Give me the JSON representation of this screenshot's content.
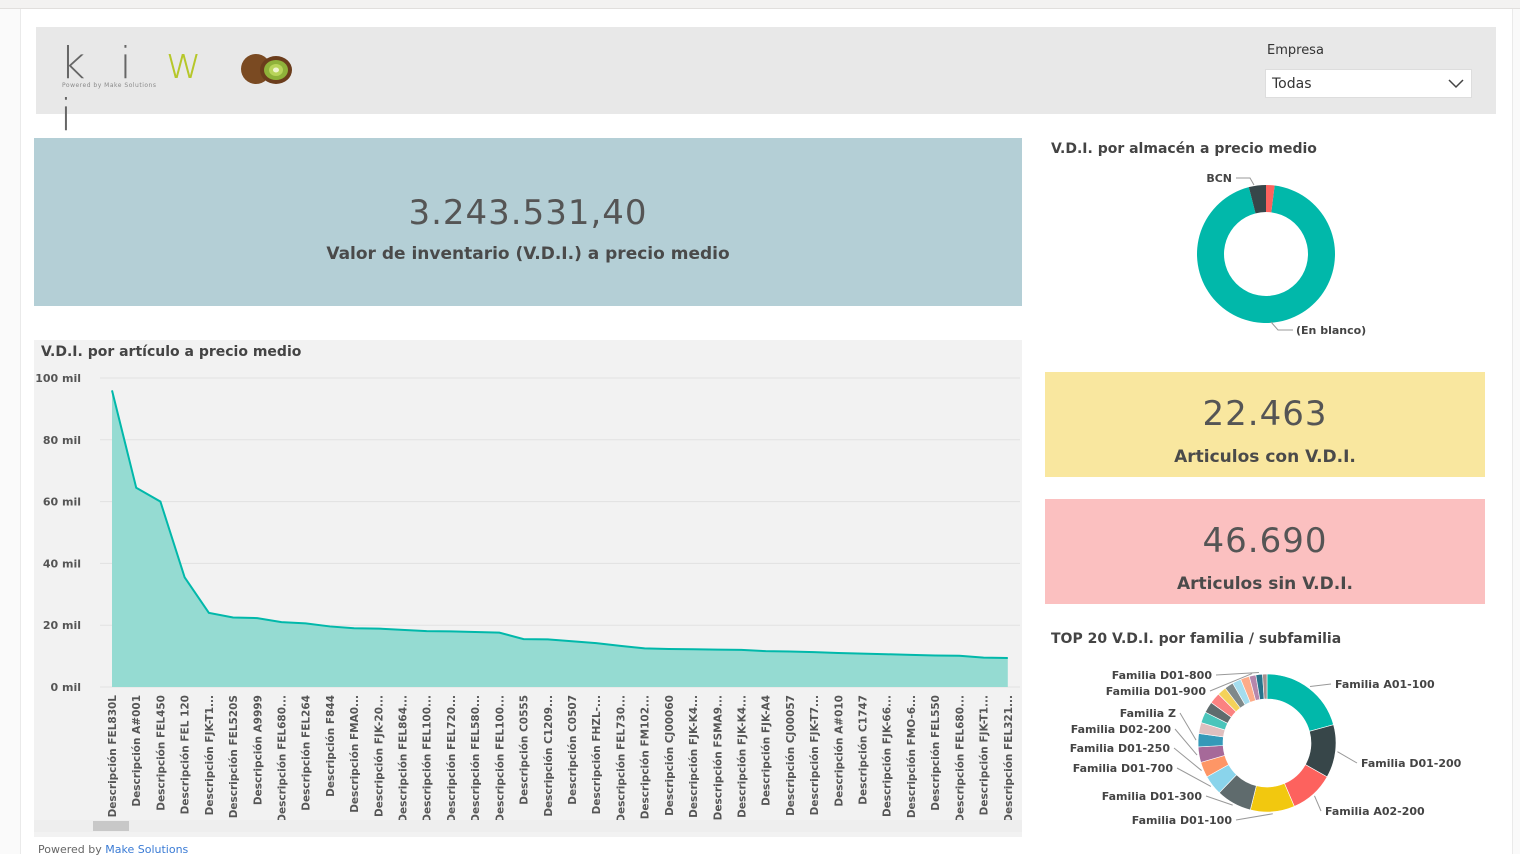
{
  "header": {
    "logo_text": "kiwi",
    "logo_tagline": "Powered by Make Solutions",
    "empresa_label": "Empresa",
    "empresa_value": "Todas"
  },
  "kpis": {
    "main_value": "3.243.531,40",
    "main_label": "Valor de inventario (V.D.I.) a precio medio",
    "with_value": "22.463",
    "with_label": "Articulos con V.D.I.",
    "without_value": "46.690",
    "without_label": "Articulos sin V.D.I."
  },
  "footer": {
    "prefix": "Powered by ",
    "link": "Make Solutions"
  },
  "colors": {
    "teal": "#01b8aa",
    "area_fill": "#95dbd2",
    "dark": "#374649",
    "red": "#fd625e",
    "yellow": "#f2c80f",
    "gray": "#5f6b6d",
    "lightblue": "#8ad4eb",
    "orange": "#fe9666",
    "purple": "#a66999"
  },
  "chart_data": [
    {
      "type": "area",
      "title": "V.D.I. por artículo a precio medio",
      "xlabel": "",
      "ylabel": "",
      "ylim": [
        0,
        100000
      ],
      "yticks": [
        0,
        20000,
        40000,
        60000,
        80000,
        100000
      ],
      "ytick_labels": [
        "0 mil",
        "20 mil",
        "40 mil",
        "60 mil",
        "80 mil",
        "100 mil"
      ],
      "grid": true,
      "categories": [
        "Descripción FEL830L",
        "Descripción A#001",
        "Descripción FEL450",
        "Descripción FEL 120",
        "Descripción FJK-T1...",
        "Descripción FEL520S",
        "Descripción A9999",
        "Descripción FEL680...",
        "Descripción FEL264",
        "Descripción F844",
        "Descripción FMA0...",
        "Descripción FJK-20...",
        "Descripción FEL864...",
        "Descripción FEL100...",
        "Descripción FEL720...",
        "Descripción FEL580...",
        "Descripción FEL100...",
        "Descripción C0555",
        "Descripción C1209...",
        "Descripción C0507",
        "Descripción FHZL-...",
        "Descripción FEL730...",
        "Descripción FM102...",
        "Descripción CJ00060",
        "Descripción FJK-K4...",
        "Descripción FSMA9...",
        "Descripción FJK-K4...",
        "Descripción FJK-A4",
        "Descripción CJ00057",
        "Descripción FJK-T7...",
        "Descripción A#010",
        "Descripción C1747",
        "Descripción FJK-66...",
        "Descripción FMO-6...",
        "Descripción FEL550",
        "Descripción FEL680...",
        "Descripción FJK-T1...",
        "Descripción FEL321..."
      ],
      "values": [
        96000,
        64500,
        60000,
        35500,
        24000,
        22500,
        22300,
        21000,
        20600,
        19600,
        19000,
        18900,
        18500,
        18100,
        18000,
        17800,
        17600,
        15500,
        15400,
        14800,
        14200,
        13300,
        12500,
        12300,
        12200,
        12100,
        12000,
        11600,
        11500,
        11300,
        11000,
        10800,
        10600,
        10400,
        10200,
        10100,
        9500,
        9400
      ]
    },
    {
      "type": "pie",
      "title": "V.D.I. por almacén a precio medio",
      "labels": [
        "(En blanco)",
        "BCN",
        ""
      ],
      "values": [
        94,
        4,
        2
      ],
      "colors": [
        "#01b8aa",
        "#374649",
        "#fd625e"
      ],
      "shown_labels": [
        "BCN",
        "(En blanco)"
      ]
    },
    {
      "type": "pie",
      "title": "TOP 20 V.D.I. por familia / subfamilia",
      "labels": [
        "Familia A01-100",
        "Familia D01-200",
        "Familia A02-200",
        "Familia D01-100",
        "Familia D01-300",
        "Familia D01-700",
        "Familia D01-250",
        "Familia D02-200",
        "Familia Z",
        "",
        "",
        "",
        "",
        "",
        "",
        "",
        "",
        "Familia D01-900",
        "Familia D01-800",
        ""
      ],
      "values": [
        20,
        12,
        10,
        10,
        8,
        4.5,
        3.5,
        3.5,
        3,
        2.5,
        2.5,
        2.5,
        2.5,
        2,
        2,
        2,
        2,
        1.5,
        1.5,
        1
      ],
      "colors": [
        "#01b8aa",
        "#374649",
        "#fd625e",
        "#f2c80f",
        "#5f6b6d",
        "#8ad4eb",
        "#fe9666",
        "#a66999",
        "#3599b8",
        "#dfbfbf",
        "#4ac5bb",
        "#5f6b6d",
        "#fb8281",
        "#f4d25a",
        "#7f898a",
        "#a4ddee",
        "#fdab89",
        "#b687ac",
        "#28738a",
        "#a78f8f"
      ]
    }
  ]
}
